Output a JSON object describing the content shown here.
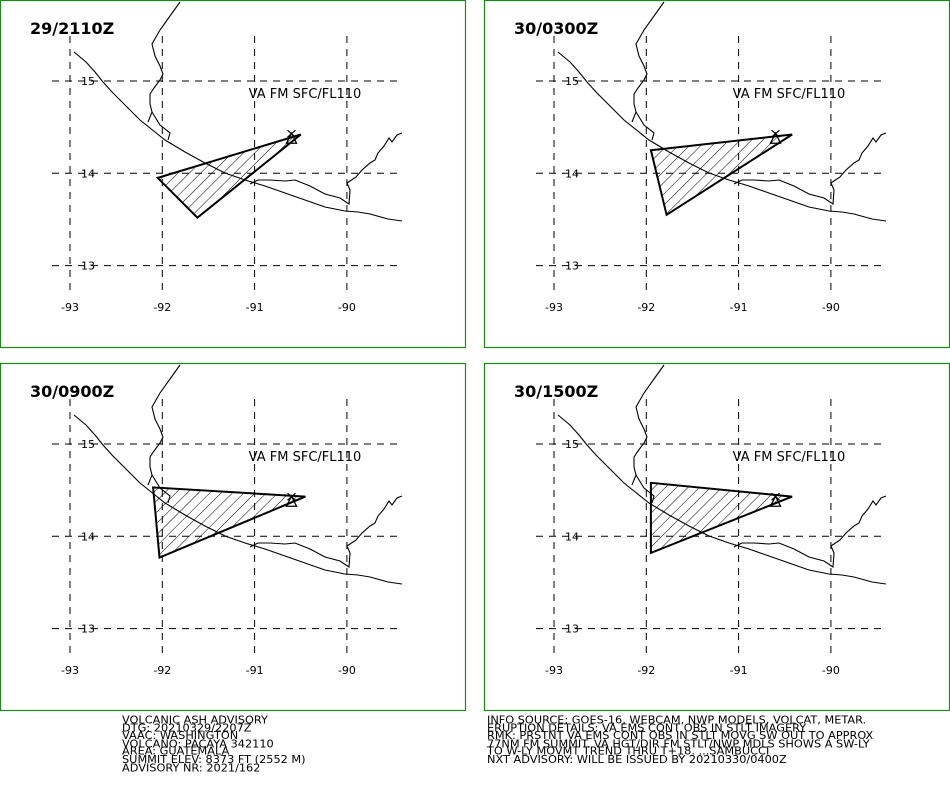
{
  "panels": [
    {
      "time": "29/2110Z",
      "label": "VA FM SFC/FL110",
      "vertices": [
        [
          -90.5,
          14.42
        ],
        [
          -92.05,
          13.95
        ],
        [
          -91.62,
          13.52
        ]
      ]
    },
    {
      "time": "30/0300Z",
      "label": "VA FM SFC/FL110",
      "vertices": [
        [
          -90.42,
          14.42
        ],
        [
          -91.95,
          14.25
        ],
        [
          -91.78,
          13.55
        ]
      ]
    },
    {
      "time": "30/0900Z",
      "label": "VA FM SFC/FL110",
      "vertices": [
        [
          -90.45,
          14.43
        ],
        [
          -92.1,
          14.53
        ],
        [
          -92.03,
          13.77
        ]
      ]
    },
    {
      "time": "30/1500Z",
      "label": "VA FM SFC/FL110",
      "vertices": [
        [
          -90.42,
          14.43
        ],
        [
          -91.95,
          14.58
        ],
        [
          -91.95,
          13.82
        ]
      ]
    }
  ],
  "map": {
    "lon_ticks": [
      "-93",
      "-92",
      "-91",
      "-90"
    ],
    "lat_ticks": [
      "15",
      "14",
      "13"
    ],
    "lon_values": [
      -93,
      -92,
      -91,
      -90
    ],
    "lat_values": [
      15,
      14,
      13
    ],
    "volcano_location": [
      -90.6,
      14.38
    ]
  },
  "advisory_left": [
    "VOLCANIC ASH ADVISORY",
    "DTG: 20210329/2207Z",
    "VAAC: WASHINGTON",
    "VOLCANO: PACAYA 342110",
    "AREA: GUATEMALA",
    "SUMMIT ELEV: 8373 FT (2552 M)",
    "ADVISORY NR: 2021/162"
  ],
  "advisory_right": [
    "INFO SOURCE: GOES-16, WEBCAM, NWP MODELS, VOLCAT, METAR.",
    "ERUPTION DETAILS: VA EMS CONT OBS IN STLT IMAGERY",
    "RMK: PRSTNT VA EMS CONT OBS IN STLT MOVG SW OUT TO APPROX",
    "77NM FM SUMMIT. VA HGT/DIR FM STLT/NWP MDLS SHOWS A SW-LY",
    "TO W-LY MOVMT TREND THRU T+18. ...SAMBUCCI",
    "NXT ADVISORY: WILL BE ISSUED BY 20210330/0400Z"
  ],
  "colors": {
    "frame": "#1a8a1a",
    "ink": "#000000",
    "background": "#ffffff"
  }
}
